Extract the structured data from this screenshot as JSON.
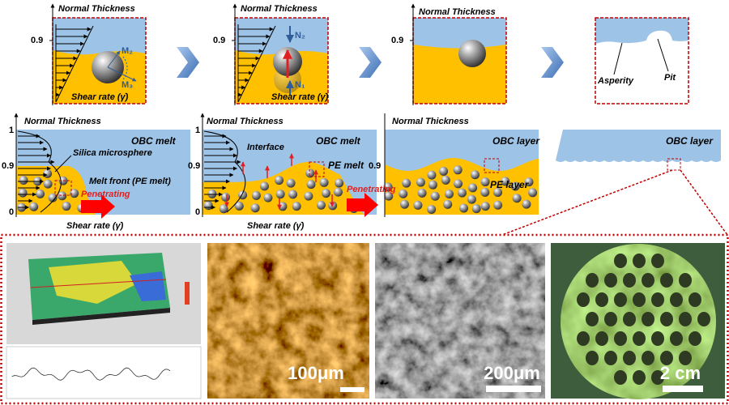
{
  "top_row": [
    {
      "y_axis_label": "Normal Thickness",
      "y_tick": "0.9",
      "moments": [
        "M₂",
        "M₃"
      ],
      "x_axis_label": "Shear rate (γ̇)"
    },
    {
      "y_axis_label": "Normal Thickness",
      "y_tick": "0.9",
      "forces": [
        "N₂",
        "N₁"
      ],
      "x_axis_label": "Shear rate (γ̇)"
    },
    {
      "y_axis_label": "Normal Thickness",
      "y_tick": "0.9"
    },
    {
      "features": [
        "Asperity",
        "Pit"
      ]
    }
  ],
  "bottom_row": [
    {
      "y_axis_label": "Normal Thickness",
      "y_ticks": [
        "1",
        "0.9",
        "0"
      ],
      "region_label": "OBC melt",
      "annotations": [
        "Silica microsphere",
        "Melt front (PE melt)"
      ],
      "flow_label": "Penetrating",
      "x_axis_label": "Shear rate (γ̇)"
    },
    {
      "y_axis_label": "Normal Thickness",
      "y_ticks": [
        "1",
        "0.9",
        "0"
      ],
      "region_label": "OBC melt",
      "annotations": [
        "Interface",
        "PE melt"
      ],
      "flow_label": "Penetrating",
      "x_axis_label": "Shear rate (γ̇)"
    },
    {
      "y_axis_label": "Normal Thickness",
      "y_tick": "0.9",
      "region_labels": [
        "OBC layer",
        "PE layer"
      ]
    },
    {
      "region_label": "OBC layer"
    }
  ],
  "micrographs": [
    {
      "scale_bar": "100μm"
    },
    {
      "scale_bar": "200μm"
    },
    {
      "scale_bar": "2 cm"
    }
  ]
}
